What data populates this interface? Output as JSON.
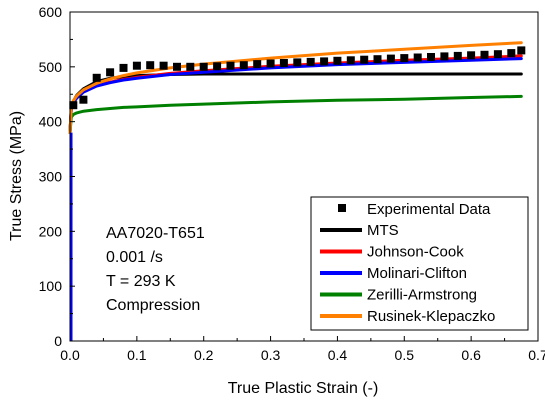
{
  "chart_data": {
    "type": "line",
    "xlabel": "True Plastic Strain (-)",
    "ylabel": "True Stress (MPa)",
    "xlim": [
      0,
      0.7
    ],
    "ylim": [
      0,
      600
    ],
    "xticks": [
      0.0,
      0.1,
      0.2,
      0.3,
      0.4,
      0.5,
      0.6,
      0.7
    ],
    "xtick_labels": [
      "0.0",
      "0.1",
      "0.2",
      "0.3",
      "0.4",
      "0.5",
      "0.6",
      "0.7"
    ],
    "yticks": [
      0,
      100,
      200,
      300,
      400,
      500,
      600
    ],
    "ytick_labels": [
      "0",
      "100",
      "200",
      "300",
      "400",
      "500",
      "600"
    ],
    "grid": false,
    "legend_position": "bottom-right",
    "annotation": [
      "AA7020-T651",
      "0.001 /s",
      "T = 293 K",
      "Compression"
    ],
    "experimental": {
      "name": "Experimental Data",
      "color": "#000000",
      "x": [
        0.005,
        0.02,
        0.04,
        0.06,
        0.08,
        0.1,
        0.12,
        0.14,
        0.16,
        0.18,
        0.2,
        0.22,
        0.24,
        0.26,
        0.28,
        0.3,
        0.32,
        0.34,
        0.36,
        0.38,
        0.4,
        0.42,
        0.44,
        0.46,
        0.48,
        0.5,
        0.52,
        0.54,
        0.56,
        0.58,
        0.6,
        0.62,
        0.64,
        0.66,
        0.675
      ],
      "y": [
        430,
        440,
        480,
        490,
        498,
        502,
        503,
        502,
        500,
        500,
        500,
        501,
        502,
        503,
        505,
        506,
        507,
        508,
        509,
        510,
        511,
        512,
        513,
        514,
        515,
        516,
        517,
        518,
        519,
        520,
        521,
        522,
        523,
        525,
        530
      ]
    },
    "series": [
      {
        "name": "MTS",
        "color": "#000000",
        "x": [
          0,
          0.002,
          0.005,
          0.01,
          0.02,
          0.04,
          0.06,
          0.08,
          0.1,
          0.15,
          0.2,
          0.3,
          0.4,
          0.5,
          0.6,
          0.675
        ],
        "y": [
          380,
          425,
          437,
          448,
          460,
          473,
          479,
          482,
          484,
          486,
          487,
          487,
          487,
          487,
          487,
          487
        ]
      },
      {
        "name": "Johnson-Cook",
        "color": "#ff0000",
        "x": [
          0,
          0.002,
          0.005,
          0.01,
          0.02,
          0.04,
          0.06,
          0.08,
          0.1,
          0.15,
          0.2,
          0.3,
          0.4,
          0.5,
          0.6,
          0.675
        ],
        "y": [
          380,
          425,
          435,
          444,
          455,
          466,
          472,
          477,
          481,
          488,
          493,
          501,
          507,
          512,
          516,
          520
        ]
      },
      {
        "name": "Molinari-Clifton",
        "color": "#0000ff",
        "x": [
          0,
          0.002,
          0.005,
          0.01,
          0.02,
          0.04,
          0.06,
          0.08,
          0.1,
          0.15,
          0.2,
          0.3,
          0.4,
          0.5,
          0.6,
          0.675
        ],
        "y": [
          380,
          424,
          434,
          443,
          454,
          465,
          471,
          476,
          479,
          486,
          490,
          498,
          504,
          508,
          512,
          515
        ]
      },
      {
        "name": "Zerilli-Armstrong",
        "color": "#008000",
        "x": [
          0,
          0.002,
          0.005,
          0.01,
          0.02,
          0.04,
          0.06,
          0.08,
          0.1,
          0.15,
          0.2,
          0.3,
          0.4,
          0.5,
          0.6,
          0.675
        ],
        "y": [
          380,
          408,
          413,
          416,
          419,
          422,
          424,
          426,
          427,
          430,
          432,
          436,
          439,
          441,
          444,
          446
        ]
      },
      {
        "name": "Rusinek-Klepaczko",
        "color": "#ff8000",
        "x": [
          0,
          0.002,
          0.005,
          0.01,
          0.02,
          0.04,
          0.06,
          0.08,
          0.1,
          0.15,
          0.2,
          0.3,
          0.4,
          0.5,
          0.6,
          0.675
        ],
        "y": [
          380,
          428,
          438,
          447,
          458,
          470,
          478,
          484,
          489,
          498,
          505,
          516,
          525,
          532,
          539,
          544
        ]
      }
    ]
  }
}
